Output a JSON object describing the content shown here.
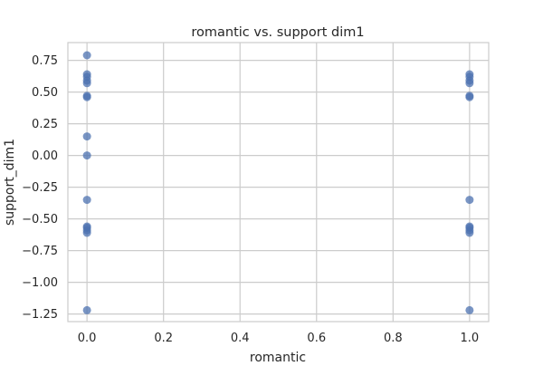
{
  "chart_data": {
    "type": "scatter",
    "title": "romantic vs. support dim1",
    "xlabel": "romantic",
    "ylabel": "support_dim1",
    "xlim": [
      -0.05,
      1.05
    ],
    "ylim": [
      -1.31,
      0.89
    ],
    "xticks": [
      {
        "value": 0.0,
        "label": "0.0"
      },
      {
        "value": 0.2,
        "label": "0.2"
      },
      {
        "value": 0.4,
        "label": "0.4"
      },
      {
        "value": 0.6,
        "label": "0.6"
      },
      {
        "value": 0.8,
        "label": "0.8"
      },
      {
        "value": 1.0,
        "label": "1.0"
      }
    ],
    "yticks": [
      {
        "value": 0.75,
        "label": "0.75"
      },
      {
        "value": 0.5,
        "label": "0.50"
      },
      {
        "value": 0.25,
        "label": "0.25"
      },
      {
        "value": 0.0,
        "label": "0.00"
      },
      {
        "value": -0.25,
        "label": "−0.25"
      },
      {
        "value": -0.5,
        "label": "−0.50"
      },
      {
        "value": -0.75,
        "label": "−0.75"
      },
      {
        "value": -1.0,
        "label": "−1.00"
      },
      {
        "value": -1.25,
        "label": "−1.25"
      }
    ],
    "grid": true,
    "marker_color": "#4c72b0",
    "points": [
      {
        "x": 0,
        "y": 0.79
      },
      {
        "x": 0,
        "y": 0.64
      },
      {
        "x": 0,
        "y": 0.62
      },
      {
        "x": 0,
        "y": 0.59
      },
      {
        "x": 0,
        "y": 0.57
      },
      {
        "x": 0,
        "y": 0.47
      },
      {
        "x": 0,
        "y": 0.46
      },
      {
        "x": 0,
        "y": 0.15
      },
      {
        "x": 0,
        "y": 0.0
      },
      {
        "x": 0,
        "y": -0.35
      },
      {
        "x": 0,
        "y": -0.56
      },
      {
        "x": 0,
        "y": -0.57
      },
      {
        "x": 0,
        "y": -0.59
      },
      {
        "x": 0,
        "y": -0.61
      },
      {
        "x": 0,
        "y": -1.22
      },
      {
        "x": 1,
        "y": 0.64
      },
      {
        "x": 1,
        "y": 0.62
      },
      {
        "x": 1,
        "y": 0.59
      },
      {
        "x": 1,
        "y": 0.57
      },
      {
        "x": 1,
        "y": 0.47
      },
      {
        "x": 1,
        "y": 0.46
      },
      {
        "x": 1,
        "y": -0.35
      },
      {
        "x": 1,
        "y": -0.56
      },
      {
        "x": 1,
        "y": -0.57
      },
      {
        "x": 1,
        "y": -0.59
      },
      {
        "x": 1,
        "y": -0.61
      },
      {
        "x": 1,
        "y": -1.22
      }
    ]
  }
}
